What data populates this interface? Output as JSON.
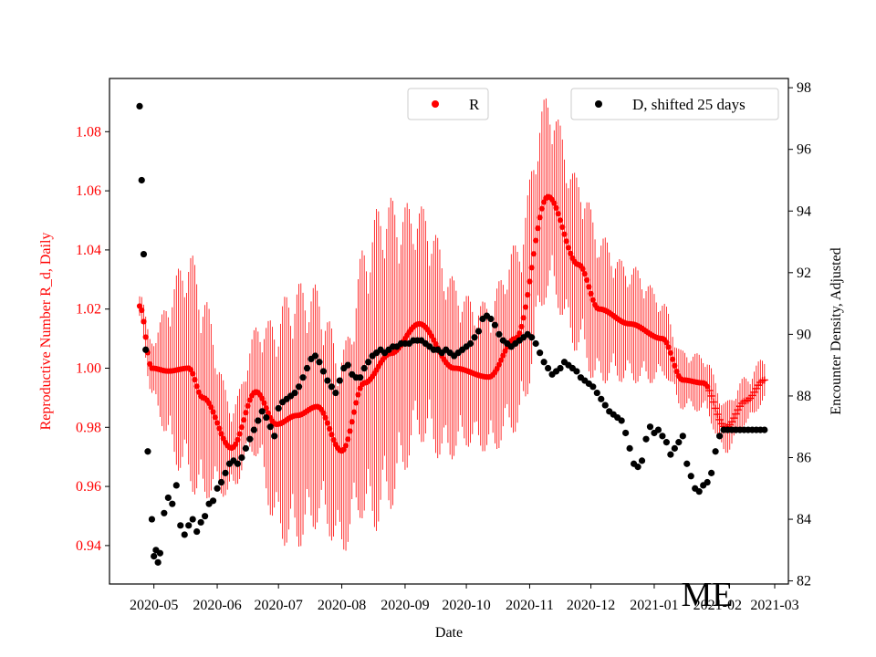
{
  "chart_data": {
    "type": "scatter",
    "xlabel": "Date",
    "ylabel_left": "Reproductive Number R_d, Daily",
    "ylabel_right": "Encounter Density, Adjusted",
    "x_ticks": [
      "2020-05",
      "2020-06",
      "2020-07",
      "2020-08",
      "2020-09",
      "2020-10",
      "2020-11",
      "2020-12",
      "2021-01",
      "2021-02",
      "2021-03"
    ],
    "ylim_left": [
      0.927,
      1.098
    ],
    "ylim_right": [
      81.9,
      98.3
    ],
    "y_ticks_left": [
      "0.94",
      "0.96",
      "0.98",
      "1.00",
      "1.02",
      "1.04",
      "1.06",
      "1.08"
    ],
    "y_ticks_right": [
      "82",
      "84",
      "86",
      "88",
      "90",
      "92",
      "94",
      "96",
      "98"
    ],
    "left_axis_color": "#ff0000",
    "right_axis_color": "#000000",
    "grid": false,
    "legend": [
      {
        "name": "R",
        "color": "#ff0000",
        "position": "top-center"
      },
      {
        "name": "D, shifted 25 days",
        "color": "#000000",
        "position": "top-right"
      }
    ],
    "watermark": "ME",
    "series": [
      {
        "name": "R",
        "axis": "left",
        "color": "#ff0000",
        "x_start": "2020-04-24",
        "x_end": "2021-02-24",
        "knots": [
          [
            "2020-04-24",
            1.021
          ],
          [
            "2020-04-30",
            1.0
          ],
          [
            "2020-05-08",
            0.999
          ],
          [
            "2020-05-18",
            1.0
          ],
          [
            "2020-05-25",
            0.99
          ],
          [
            "2020-06-08",
            0.973
          ],
          [
            "2020-06-20",
            0.992
          ],
          [
            "2020-06-30",
            0.981
          ],
          [
            "2020-07-10",
            0.984
          ],
          [
            "2020-07-20",
            0.987
          ],
          [
            "2020-08-01",
            0.972
          ],
          [
            "2020-08-12",
            0.995
          ],
          [
            "2020-08-25",
            1.005
          ],
          [
            "2020-09-08",
            1.015
          ],
          [
            "2020-09-25",
            1.0
          ],
          [
            "2020-10-12",
            0.997
          ],
          [
            "2020-10-25",
            1.01
          ],
          [
            "2020-11-10",
            1.058
          ],
          [
            "2020-11-25",
            1.035
          ],
          [
            "2020-12-05",
            1.02
          ],
          [
            "2020-12-20",
            1.015
          ],
          [
            "2021-01-05",
            1.01
          ],
          [
            "2021-01-15",
            0.996
          ],
          [
            "2021-01-25",
            0.995
          ],
          [
            "2021-02-05",
            0.98
          ],
          [
            "2021-02-15",
            0.989
          ],
          [
            "2021-02-24",
            0.996
          ]
        ],
        "error_band_knots": [
          [
            "2020-04-24",
            0.006
          ],
          [
            "2020-05-20",
            0.04
          ],
          [
            "2020-06-10",
            0.015
          ],
          [
            "2020-07-10",
            0.045
          ],
          [
            "2020-08-01",
            0.035
          ],
          [
            "2020-08-20",
            0.055
          ],
          [
            "2020-09-10",
            0.04
          ],
          [
            "2020-10-05",
            0.025
          ],
          [
            "2020-11-05",
            0.035
          ],
          [
            "2020-11-25",
            0.03
          ],
          [
            "2020-12-20",
            0.02
          ],
          [
            "2021-01-15",
            0.01
          ],
          [
            "2021-02-24",
            0.008
          ]
        ],
        "trailing_marker": "plus"
      },
      {
        "name": "D, shifted 25 days",
        "axis": "right",
        "color": "#000000",
        "points": [
          [
            "2020-04-24",
            97.4
          ],
          [
            "2020-04-25",
            95.0
          ],
          [
            "2020-04-26",
            92.6
          ],
          [
            "2020-04-27",
            89.5
          ],
          [
            "2020-04-28",
            86.2
          ],
          [
            "2020-04-30",
            84.0
          ],
          [
            "2020-05-01",
            82.8
          ],
          [
            "2020-05-02",
            83.0
          ],
          [
            "2020-05-03",
            82.6
          ],
          [
            "2020-05-04",
            82.9
          ],
          [
            "2020-05-06",
            84.2
          ],
          [
            "2020-05-08",
            84.7
          ],
          [
            "2020-05-10",
            84.5
          ],
          [
            "2020-05-12",
            85.1
          ],
          [
            "2020-05-14",
            83.8
          ],
          [
            "2020-05-16",
            83.5
          ],
          [
            "2020-05-18",
            83.8
          ],
          [
            "2020-05-20",
            84.0
          ],
          [
            "2020-05-22",
            83.6
          ],
          [
            "2020-05-24",
            83.9
          ],
          [
            "2020-05-26",
            84.1
          ],
          [
            "2020-05-28",
            84.5
          ],
          [
            "2020-05-30",
            84.6
          ],
          [
            "2020-06-01",
            85.0
          ],
          [
            "2020-06-03",
            85.2
          ],
          [
            "2020-06-05",
            85.5
          ],
          [
            "2020-06-07",
            85.8
          ],
          [
            "2020-06-09",
            85.9
          ],
          [
            "2020-06-11",
            85.8
          ],
          [
            "2020-06-13",
            86.0
          ],
          [
            "2020-06-15",
            86.3
          ],
          [
            "2020-06-17",
            86.6
          ],
          [
            "2020-06-19",
            86.9
          ],
          [
            "2020-06-21",
            87.2
          ],
          [
            "2020-06-23",
            87.5
          ],
          [
            "2020-06-25",
            87.3
          ],
          [
            "2020-06-27",
            87.0
          ],
          [
            "2020-06-29",
            86.7
          ],
          [
            "2020-07-01",
            87.6
          ],
          [
            "2020-07-03",
            87.8
          ],
          [
            "2020-07-05",
            87.9
          ],
          [
            "2020-07-07",
            88.0
          ],
          [
            "2020-07-09",
            88.1
          ],
          [
            "2020-07-11",
            88.3
          ],
          [
            "2020-07-13",
            88.6
          ],
          [
            "2020-07-15",
            88.9
          ],
          [
            "2020-07-17",
            89.2
          ],
          [
            "2020-07-19",
            89.3
          ],
          [
            "2020-07-21",
            89.1
          ],
          [
            "2020-07-23",
            88.8
          ],
          [
            "2020-07-25",
            88.5
          ],
          [
            "2020-07-27",
            88.3
          ],
          [
            "2020-07-29",
            88.1
          ],
          [
            "2020-07-31",
            88.5
          ],
          [
            "2020-08-02",
            88.9
          ],
          [
            "2020-08-04",
            89.0
          ],
          [
            "2020-08-06",
            88.7
          ],
          [
            "2020-08-08",
            88.6
          ],
          [
            "2020-08-10",
            88.6
          ],
          [
            "2020-08-12",
            88.9
          ],
          [
            "2020-08-14",
            89.1
          ],
          [
            "2020-08-16",
            89.3
          ],
          [
            "2020-08-18",
            89.4
          ],
          [
            "2020-08-20",
            89.5
          ],
          [
            "2020-08-22",
            89.4
          ],
          [
            "2020-08-24",
            89.5
          ],
          [
            "2020-08-26",
            89.6
          ],
          [
            "2020-08-28",
            89.6
          ],
          [
            "2020-08-30",
            89.7
          ],
          [
            "2020-09-01",
            89.7
          ],
          [
            "2020-09-03",
            89.7
          ],
          [
            "2020-09-05",
            89.8
          ],
          [
            "2020-09-07",
            89.8
          ],
          [
            "2020-09-09",
            89.8
          ],
          [
            "2020-09-11",
            89.7
          ],
          [
            "2020-09-13",
            89.6
          ],
          [
            "2020-09-15",
            89.5
          ],
          [
            "2020-09-17",
            89.5
          ],
          [
            "2020-09-19",
            89.4
          ],
          [
            "2020-09-21",
            89.5
          ],
          [
            "2020-09-23",
            89.4
          ],
          [
            "2020-09-25",
            89.3
          ],
          [
            "2020-09-27",
            89.4
          ],
          [
            "2020-09-29",
            89.5
          ],
          [
            "2020-10-01",
            89.6
          ],
          [
            "2020-10-03",
            89.7
          ],
          [
            "2020-10-05",
            89.9
          ],
          [
            "2020-10-07",
            90.1
          ],
          [
            "2020-10-09",
            90.5
          ],
          [
            "2020-10-11",
            90.6
          ],
          [
            "2020-10-13",
            90.5
          ],
          [
            "2020-10-15",
            90.3
          ],
          [
            "2020-10-17",
            90.0
          ],
          [
            "2020-10-19",
            89.8
          ],
          [
            "2020-10-21",
            89.7
          ],
          [
            "2020-10-23",
            89.6
          ],
          [
            "2020-10-25",
            89.7
          ],
          [
            "2020-10-27",
            89.8
          ],
          [
            "2020-10-29",
            89.9
          ],
          [
            "2020-10-31",
            90.0
          ],
          [
            "2020-11-02",
            89.9
          ],
          [
            "2020-11-04",
            89.7
          ],
          [
            "2020-11-06",
            89.4
          ],
          [
            "2020-11-08",
            89.1
          ],
          [
            "2020-11-10",
            88.9
          ],
          [
            "2020-11-12",
            88.7
          ],
          [
            "2020-11-14",
            88.8
          ],
          [
            "2020-11-16",
            88.9
          ],
          [
            "2020-11-18",
            89.1
          ],
          [
            "2020-11-20",
            89.0
          ],
          [
            "2020-11-22",
            88.9
          ],
          [
            "2020-11-24",
            88.8
          ],
          [
            "2020-11-26",
            88.6
          ],
          [
            "2020-11-28",
            88.5
          ],
          [
            "2020-11-30",
            88.4
          ],
          [
            "2020-12-02",
            88.3
          ],
          [
            "2020-12-04",
            88.1
          ],
          [
            "2020-12-06",
            87.9
          ],
          [
            "2020-12-08",
            87.7
          ],
          [
            "2020-12-10",
            87.5
          ],
          [
            "2020-12-12",
            87.4
          ],
          [
            "2020-12-14",
            87.3
          ],
          [
            "2020-12-16",
            87.2
          ],
          [
            "2020-12-18",
            86.8
          ],
          [
            "2020-12-20",
            86.3
          ],
          [
            "2020-12-22",
            85.8
          ],
          [
            "2020-12-24",
            85.7
          ],
          [
            "2020-12-26",
            85.9
          ],
          [
            "2020-12-28",
            86.6
          ],
          [
            "2020-12-30",
            87.0
          ],
          [
            "2021-01-01",
            86.8
          ],
          [
            "2021-01-03",
            86.9
          ],
          [
            "2021-01-05",
            86.7
          ],
          [
            "2021-01-07",
            86.5
          ],
          [
            "2021-01-09",
            86.1
          ],
          [
            "2021-01-11",
            86.3
          ],
          [
            "2021-01-13",
            86.5
          ],
          [
            "2021-01-15",
            86.7
          ],
          [
            "2021-01-17",
            85.8
          ],
          [
            "2021-01-19",
            85.4
          ],
          [
            "2021-01-21",
            85.0
          ],
          [
            "2021-01-23",
            84.9
          ],
          [
            "2021-01-25",
            85.1
          ],
          [
            "2021-01-27",
            85.2
          ],
          [
            "2021-01-29",
            85.5
          ],
          [
            "2021-01-31",
            86.2
          ],
          [
            "2021-02-02",
            86.7
          ],
          [
            "2021-02-04",
            86.9
          ],
          [
            "2021-02-06",
            86.9
          ],
          [
            "2021-02-08",
            86.9
          ],
          [
            "2021-02-10",
            86.9
          ],
          [
            "2021-02-12",
            86.9
          ],
          [
            "2021-02-14",
            86.9
          ],
          [
            "2021-02-16",
            86.9
          ],
          [
            "2021-02-18",
            86.9
          ],
          [
            "2021-02-20",
            86.9
          ],
          [
            "2021-02-22",
            86.9
          ],
          [
            "2021-02-24",
            86.9
          ]
        ]
      }
    ]
  }
}
